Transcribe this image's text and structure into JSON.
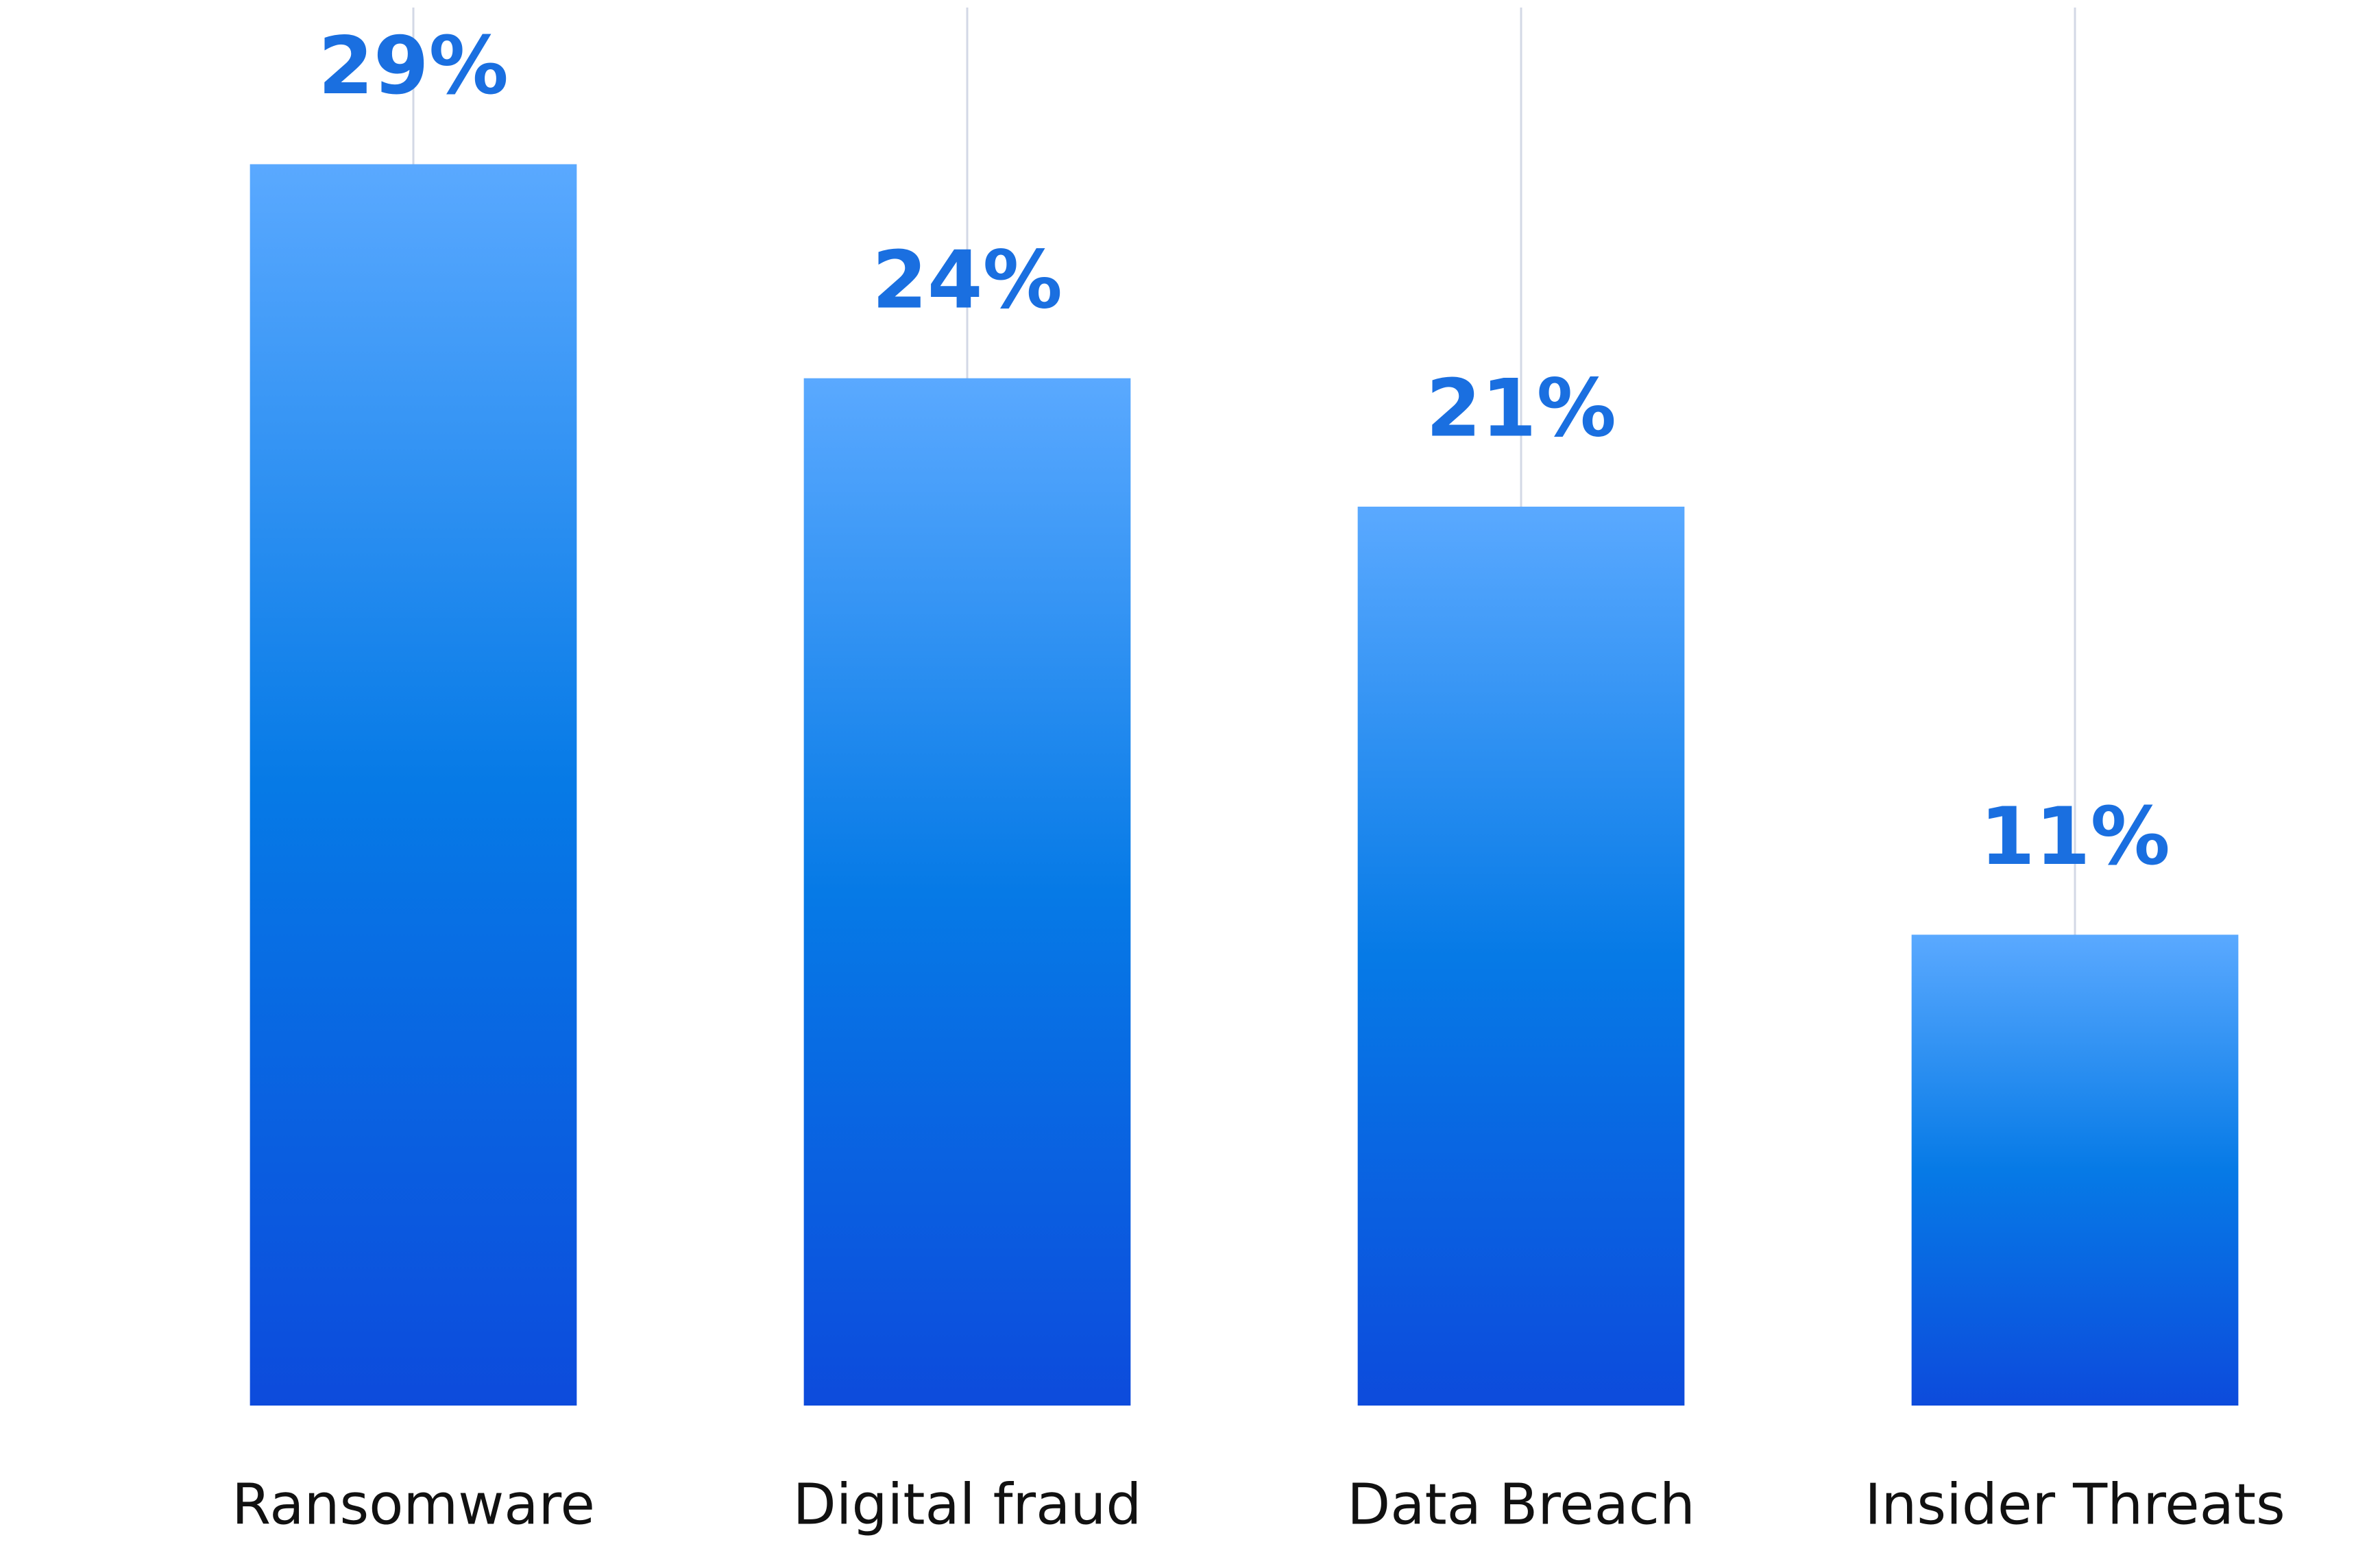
{
  "chart_data": {
    "type": "bar",
    "categories": [
      "Ransomware",
      "Digital fraud",
      "Data Breach",
      "Insider Threats"
    ],
    "values": [
      29,
      24,
      21,
      11
    ],
    "value_labels": [
      "29%",
      "24%",
      "21%",
      "11%"
    ],
    "ylim": [
      0,
      32.5
    ],
    "yticks": [
      0,
      5,
      10,
      15,
      20,
      25,
      30
    ],
    "grid": true
  }
}
